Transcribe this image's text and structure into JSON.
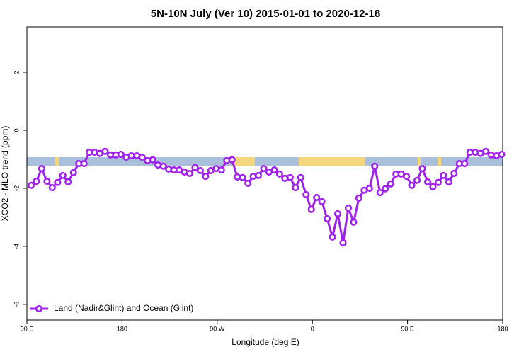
{
  "chart_data": {
    "type": "line",
    "title": "5N-10N July (Ver 10)   2015-01-01 to 2020-12-18",
    "x_label": "Longitude (deg E)",
    "y_label": "XCO2 - MLO trend (ppm)",
    "x": [
      94,
      99,
      104,
      109,
      114,
      119,
      124,
      129,
      134,
      139,
      144,
      149,
      154,
      159,
      164,
      169,
      174,
      179,
      184,
      189,
      194,
      199,
      204,
      209,
      214,
      219,
      224,
      229,
      234,
      239,
      244,
      249,
      254,
      259,
      264,
      269,
      274,
      279,
      284,
      289,
      294,
      299,
      304,
      309,
      314,
      319,
      324,
      329,
      334,
      339,
      344,
      349,
      354,
      359,
      364,
      369,
      374,
      379,
      384,
      389,
      394,
      399,
      404,
      409,
      414,
      419,
      424,
      429,
      434,
      439,
      444,
      449,
      454,
      459,
      464,
      469,
      474,
      479,
      484,
      489,
      494,
      499,
      504,
      509,
      514,
      519,
      524,
      529,
      534,
      539
    ],
    "series": [
      {
        "name": "Land (Nadir&Glint) and Ocean (Glint)",
        "color": "#a020f0",
        "values": [
          -1.9,
          -1.76,
          -1.32,
          -1.76,
          -1.98,
          -1.8,
          -1.56,
          -1.78,
          -1.46,
          -1.15,
          -1.15,
          -0.76,
          -0.76,
          -0.8,
          -0.73,
          -0.85,
          -0.85,
          -0.83,
          -0.93,
          -0.88,
          -0.88,
          -0.93,
          -1.05,
          -1.02,
          -1.2,
          -1.24,
          -1.34,
          -1.37,
          -1.37,
          -1.44,
          -1.49,
          -1.29,
          -1.39,
          -1.59,
          -1.39,
          -1.32,
          -1.37,
          -1.05,
          -1.02,
          -1.61,
          -1.63,
          -1.83,
          -1.59,
          -1.56,
          -1.32,
          -1.44,
          -1.37,
          -1.51,
          -1.66,
          -1.63,
          -1.98,
          -1.63,
          -2.22,
          -2.73,
          -2.32,
          -2.46,
          -3.05,
          -3.68,
          -2.88,
          -3.88,
          -2.68,
          -3.17,
          -2.34,
          -2.07,
          -2.0,
          -1.24,
          -2.15,
          -2.02,
          -1.85,
          -1.51,
          -1.51,
          -1.59,
          -1.9,
          -1.73,
          -1.32,
          -1.78,
          -1.95,
          -1.8,
          -1.56,
          -1.78,
          -1.49,
          -1.15,
          -1.15,
          -0.76,
          -0.76,
          -0.8,
          -0.73,
          -0.85,
          -0.88,
          -0.83
        ]
      }
    ],
    "xlim": [
      90,
      540
    ],
    "xticks": [
      {
        "value": 90,
        "label": "90 E"
      },
      {
        "value": 180,
        "label": "180"
      },
      {
        "value": 270,
        "label": "90 W"
      },
      {
        "value": 360,
        "label": "0"
      },
      {
        "value": 450,
        "label": "90 E"
      },
      {
        "value": 540,
        "label": "180"
      }
    ],
    "ylim": [
      -6.54,
      3.56
    ],
    "yticks": [
      2,
      0,
      -2,
      -4,
      -6
    ],
    "legend": "bottom-left"
  }
}
